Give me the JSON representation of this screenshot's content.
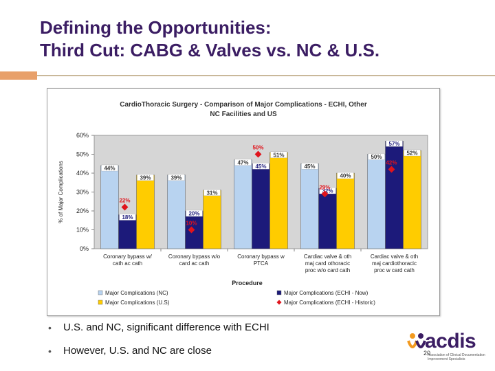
{
  "slide": {
    "title_line1": "Defining the Opportunities:",
    "title_line2": "Third Cut: CABG & Valves vs. NC & U.S.",
    "bullets": [
      "U.S. and NC, significant difference with ECHI",
      "However, U.S. and NC are close"
    ],
    "page_number": "20"
  },
  "logo": {
    "text": "acdis",
    "subtitle": "Association of Clinical Documentation Improvement Specialists"
  },
  "colors": {
    "title": "#3b1d63",
    "nc_bar": "#b8d3f0",
    "echi_now_bar": "#1c1a7a",
    "us_bar": "#ffcc00",
    "historic_marker": "#e0141c",
    "plot_bg": "#d6d6d6",
    "accent": "#e8a06a"
  },
  "chart_data": {
    "type": "bar",
    "title": "CardioThoracic Surgery - Comparison of Major Complications - ECHI, Other NC Facilities and US",
    "title_line1": "CardioThoracic Surgery - Comparison of Major Complications - ECHI, Other",
    "title_line2": "NC Facilities and US",
    "xlabel": "Procedure",
    "ylabel": "% of Major Complications",
    "ylim": [
      0,
      60
    ],
    "yticks": [
      "0%",
      "10%",
      "20%",
      "30%",
      "40%",
      "50%",
      "60%"
    ],
    "grid": false,
    "legend_position": "bottom",
    "categories": [
      [
        "Coronary bypass w/",
        "cath ac cath"
      ],
      [
        "Coronary bypass w/o",
        "card ac cath"
      ],
      [
        "Coronary bypass w",
        "PTCA"
      ],
      [
        "Cardiac valve & oth",
        "maj card othoracic",
        "proc w/o card cath"
      ],
      [
        "Cardiac valve & oth",
        "maj cardiothoracic",
        "proc w card cath"
      ]
    ],
    "series": [
      {
        "name": "Major Complications (NC)",
        "kind": "bar",
        "color": "#b8d3f0",
        "values": [
          44,
          39,
          47,
          45,
          50
        ],
        "labels": [
          "44%",
          "39%",
          "47%",
          "45%",
          "50%"
        ]
      },
      {
        "name": "Major Complications (ECHI - Now)",
        "kind": "bar",
        "color": "#1c1a7a",
        "values": [
          18,
          20,
          45,
          32,
          57
        ],
        "labels": [
          "18%",
          "20%",
          "45%",
          "32%",
          "57%"
        ]
      },
      {
        "name": "Major Complications (U.S)",
        "kind": "bar",
        "color": "#ffcc00",
        "values": [
          39,
          31,
          51,
          40,
          52
        ],
        "labels": [
          "39%",
          "31%",
          "51%",
          "40%",
          "52%"
        ]
      },
      {
        "name": "Major Complications (ECHI - Historic)",
        "kind": "marker",
        "color": "#e0141c",
        "values": [
          22,
          10,
          50,
          29,
          42
        ],
        "labels": [
          "22%",
          "10%",
          "50%",
          "29%",
          "42%"
        ]
      }
    ]
  }
}
